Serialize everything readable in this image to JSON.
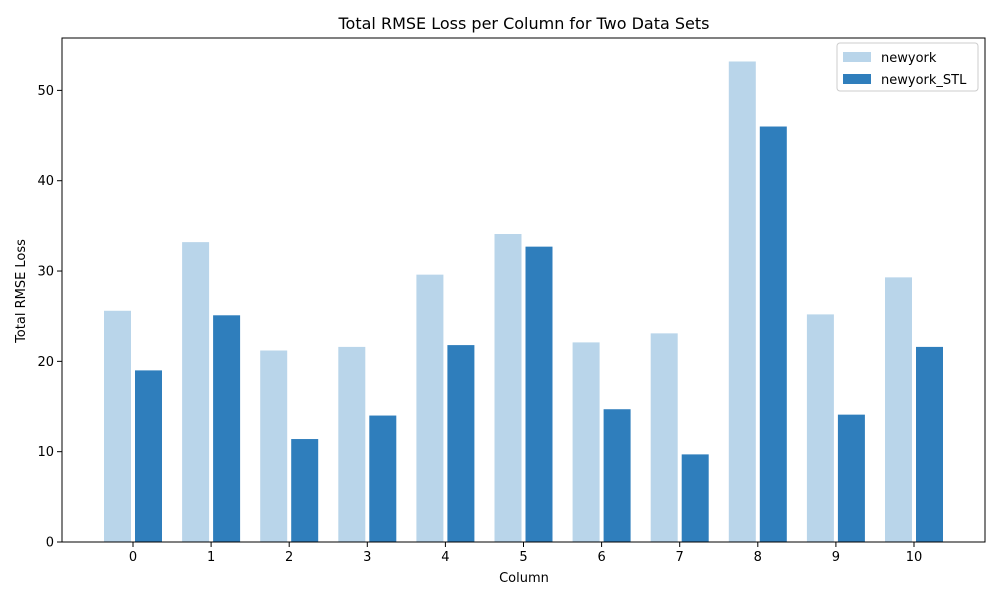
{
  "chart_data": {
    "type": "bar",
    "title": "Total RMSE Loss per Column for Two Data Sets",
    "xlabel": "Column",
    "ylabel": "Total RMSE Loss",
    "categories": [
      "0",
      "1",
      "2",
      "3",
      "4",
      "5",
      "6",
      "7",
      "8",
      "9",
      "10"
    ],
    "series": [
      {
        "name": "newyork",
        "color": "#b9d5ea",
        "values": [
          25.6,
          33.2,
          21.2,
          21.6,
          29.6,
          34.1,
          22.1,
          23.1,
          53.2,
          25.2,
          29.3
        ]
      },
      {
        "name": "newyork_STL",
        "color": "#2f7ebc",
        "values": [
          19.0,
          25.1,
          11.4,
          14.0,
          21.8,
          32.7,
          14.7,
          9.7,
          46.0,
          14.1,
          21.6
        ]
      }
    ],
    "ylim": [
      0,
      55.8
    ],
    "yticks": [
      0,
      10,
      20,
      30,
      40,
      50
    ],
    "grid": false,
    "legend_position": "top-right"
  }
}
